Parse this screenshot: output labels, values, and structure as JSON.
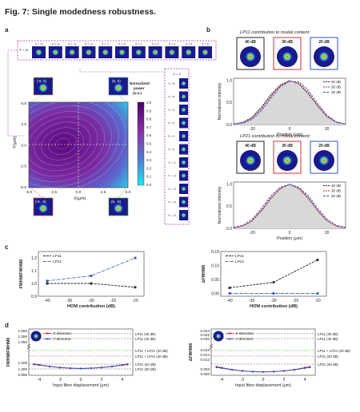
{
  "figure_title": "Fig. 7: Single modedness robustness.",
  "panels": {
    "a": "a",
    "b": "b",
    "c": "c",
    "d": "d"
  },
  "panel_a": {
    "colorbar_title": "Normalized power (a.u.)",
    "colorbar_ticks": [
      "1.0",
      "0.9",
      "0.8",
      "0.7",
      "0.6",
      "0.5",
      "0.4",
      "0.3",
      "0.2",
      "0.1",
      "0.0"
    ],
    "x_axis_label": "X(μm)",
    "y_axis_label": "Y(μm)",
    "x_ticks": [
      "-5.0",
      "-2.5",
      "0.0",
      "2.5",
      "5.0"
    ],
    "y_ticks": [
      "5.0",
      "2.5",
      "0.0",
      "-2.5",
      "-5.0"
    ],
    "corner_labels": {
      "top_left": "(-5, 5)",
      "top_right": "(5, 5)",
      "bottom_left": "(-5, -5)",
      "bottom_right": "(5, -5)"
    },
    "row_label_y": "Y = 5",
    "row_x_labels": [
      "X = -5",
      "X = -4",
      "X = -3",
      "X = -2",
      "X = -1",
      "X = 0",
      "X = 1",
      "X = 2",
      "X = 3",
      "X = 4",
      "X = 5"
    ],
    "col_label_x": "X = 0",
    "col_y_labels": [
      "Y = 5",
      "Y = 4",
      "Y = 3",
      "Y = 2",
      "Y = 1",
      "Y = 0",
      "Y = -1",
      "Y = -2",
      "Y = -3",
      "Y = -4",
      "Y = -5"
    ],
    "colors": {
      "corner_tl": "#c8b84a",
      "corner_tr": "#4aa0c8",
      "corner_bl": "#d04a4a",
      "corner_br": "#4aa84a",
      "frame": "#9b3aa0"
    }
  },
  "panel_b": {
    "top_title": "LP11 contribution to modal content:",
    "bottom_title": "LP21 contribution to modal content:",
    "thumb_labels": [
      "40 dB",
      "30 dB",
      "20 dB"
    ],
    "thumb_colors": [
      "#222222",
      "#d03030",
      "#3050c0"
    ],
    "y_axis_label": "Normalized intensity",
    "x_axis_label": "Position (μm)",
    "x_ticks": [
      "-20",
      "0",
      "20"
    ],
    "y_ticks": [
      "1.0",
      "0.5",
      "0.0"
    ],
    "legend": [
      "40 dB",
      "30 dB",
      "20 dB"
    ]
  },
  "chart_data": [
    {
      "type": "line",
      "panel": "b-top",
      "xlabel": "Position (μm)",
      "ylabel": "Normalized intensity",
      "xlim": [
        -30,
        30
      ],
      "ylim": [
        0,
        1.05
      ],
      "series": [
        {
          "name": "40 dB",
          "x": [
            -30,
            -25,
            -20,
            -15,
            -10,
            -5,
            0,
            5,
            10,
            15,
            20,
            25,
            30
          ],
          "values": [
            0.01,
            0.05,
            0.17,
            0.4,
            0.68,
            0.9,
            1.0,
            0.92,
            0.7,
            0.42,
            0.18,
            0.05,
            0.01
          ]
        },
        {
          "name": "30 dB",
          "x": [
            -30,
            -25,
            -20,
            -15,
            -10,
            -5,
            0,
            5,
            10,
            15,
            20,
            25,
            30
          ],
          "values": [
            0.01,
            0.04,
            0.15,
            0.37,
            0.65,
            0.88,
            0.99,
            0.94,
            0.73,
            0.44,
            0.19,
            0.06,
            0.01
          ]
        },
        {
          "name": "20 dB",
          "x": [
            -30,
            -25,
            -20,
            -15,
            -10,
            -5,
            0,
            5,
            10,
            15,
            20,
            25,
            30
          ],
          "values": [
            0.01,
            0.03,
            0.12,
            0.32,
            0.6,
            0.85,
            0.98,
            0.97,
            0.78,
            0.48,
            0.21,
            0.06,
            0.01
          ]
        }
      ]
    },
    {
      "type": "line",
      "panel": "b-bottom",
      "xlabel": "Position (μm)",
      "ylabel": "Normalized intensity",
      "xlim": [
        -30,
        30
      ],
      "ylim": [
        0,
        1.05
      ],
      "series": [
        {
          "name": "40 dB",
          "x": [
            -30,
            -25,
            -20,
            -15,
            -10,
            -5,
            0,
            5,
            10,
            15,
            20,
            25,
            30
          ],
          "values": [
            0.01,
            0.05,
            0.17,
            0.4,
            0.68,
            0.9,
            1.0,
            0.9,
            0.68,
            0.4,
            0.17,
            0.05,
            0.01
          ]
        },
        {
          "name": "30 dB",
          "x": [
            -30,
            -25,
            -20,
            -15,
            -10,
            -5,
            0,
            5,
            10,
            15,
            20,
            25,
            30
          ],
          "values": [
            0.01,
            0.05,
            0.18,
            0.42,
            0.7,
            0.91,
            1.0,
            0.91,
            0.7,
            0.42,
            0.18,
            0.05,
            0.01
          ]
        },
        {
          "name": "20 dB",
          "x": [
            -30,
            -25,
            -20,
            -15,
            -10,
            -5,
            0,
            5,
            10,
            15,
            20,
            25,
            30
          ],
          "values": [
            0.02,
            0.07,
            0.21,
            0.46,
            0.74,
            0.93,
            1.0,
            0.93,
            0.74,
            0.46,
            0.21,
            0.07,
            0.02
          ]
        }
      ]
    },
    {
      "type": "line",
      "panel": "c-left",
      "xlabel": "HOM contribution (dB)",
      "ylabel": "FWHM/FWHM0",
      "xlim": [
        -42,
        -18
      ],
      "ylim": [
        0.9,
        1.25
      ],
      "xticks": [
        "-40",
        "-35",
        "-30",
        "-25",
        "-20"
      ],
      "yticks": [
        "1.2",
        "1.1",
        "1.0",
        "0.9"
      ],
      "legend": [
        "LP11",
        "LP21"
      ],
      "series": [
        {
          "name": "LP11",
          "x": [
            -40,
            -30,
            -20
          ],
          "values": [
            1.0,
            1.0,
            0.97
          ]
        },
        {
          "name": "LP21",
          "x": [
            -40,
            -30,
            -20
          ],
          "values": [
            1.02,
            1.06,
            1.2
          ]
        }
      ]
    },
    {
      "type": "line",
      "panel": "c-right",
      "xlabel": "HOM contribution (dB)",
      "ylabel": "ΔFWHM0",
      "xlim": [
        -42,
        -18
      ],
      "ylim": [
        -0.01,
        0.15
      ],
      "xticks": [
        "-40",
        "-35",
        "-30",
        "-25",
        "-20"
      ],
      "yticks": [
        "0.15",
        "0.10",
        "0.05",
        "0.00"
      ],
      "legend": [
        "LP11",
        "LP21"
      ],
      "series": [
        {
          "name": "LP11",
          "x": [
            -40,
            -30,
            -20
          ],
          "values": [
            0.02,
            0.04,
            0.12
          ]
        },
        {
          "name": "LP21",
          "x": [
            -40,
            -30,
            -20
          ],
          "values": [
            0.0,
            0.0,
            0.0
          ]
        }
      ]
    },
    {
      "type": "line",
      "panel": "d-left",
      "xlabel": "Input fibre displacement (μm)",
      "ylabel": "FWHM/FWHM0",
      "xlim": [
        -5,
        5
      ],
      "ylim": [
        0.995,
        1.06
      ],
      "xticks": [
        "-4",
        "-2",
        "0",
        "2",
        "4"
      ],
      "yticks": [
        "1.060",
        "1.055",
        "1.050",
        "1.005",
        "1.000",
        "0.995"
      ],
      "legend": [
        "X-direction",
        "Y-direction"
      ],
      "reference_lines": [
        "LP11 (30 dB)",
        "LP11 (40 dB)",
        "LP11 + LP21 (20 dB)",
        "LP11 + LP21 (40 dB)",
        "LP21 (40 dB)",
        "LP21 (30 dB)"
      ],
      "series": [
        {
          "name": "X-direction",
          "x": [
            -4.5,
            -4,
            -3,
            -2,
            -1,
            0,
            1,
            2,
            3,
            4,
            4.5
          ],
          "values": [
            1.0045,
            1.0038,
            1.0022,
            1.0011,
            1.0004,
            1.0001,
            1.0004,
            1.0011,
            1.0022,
            1.0038,
            1.0045
          ]
        },
        {
          "name": "Y-direction",
          "x": [
            -4.5,
            -4,
            -3,
            -2,
            -1,
            0,
            1,
            2,
            3,
            4,
            4.5
          ],
          "values": [
            1.004,
            1.0034,
            1.002,
            1.001,
            1.0004,
            1.0001,
            1.0004,
            1.001,
            1.002,
            1.0034,
            1.004
          ]
        }
      ]
    },
    {
      "type": "line",
      "panel": "d-right",
      "xlabel": "Input fibre displacement (μm)",
      "ylabel": "ΔFWHM0",
      "xlim": [
        -5,
        5
      ],
      "ylim": [
        -0.001,
        0.044
      ],
      "xticks": [
        "-4",
        "-2",
        "0",
        "2",
        "4"
      ],
      "yticks": [
        "0.044",
        "0.042",
        "0.040",
        "0.016",
        "0.014",
        "0.012",
        "0.002",
        "0.000"
      ],
      "legend": [
        "X-direction",
        "Y-direction"
      ],
      "reference_lines": [
        "LP11 (30 dB)",
        "LP11 (40 dB)",
        "LP11 + LP21 (20 dB)",
        "LP21 (30 dB)",
        "LP21 (40 dB)"
      ],
      "series": [
        {
          "name": "X-direction",
          "x": [
            -4.5,
            -4,
            -3,
            -2,
            -1,
            0,
            1,
            2,
            3,
            4,
            4.5
          ],
          "values": [
            0.0034,
            0.0028,
            0.0016,
            0.0008,
            0.0003,
            0.0001,
            0.0003,
            0.0008,
            0.0016,
            0.0028,
            0.0034
          ]
        },
        {
          "name": "Y-direction",
          "x": [
            -4.5,
            -4,
            -3,
            -2,
            -1,
            0,
            1,
            2,
            3,
            4,
            4.5
          ],
          "values": [
            0.003,
            0.0025,
            0.0014,
            0.0007,
            0.0003,
            0.0001,
            0.0003,
            0.0007,
            0.0014,
            0.0025,
            0.003
          ]
        }
      ]
    }
  ],
  "panel_c": {
    "left_xlabel": "HOM contribution (dB)",
    "left_ylabel": "FWHM/FWHM0",
    "right_xlabel": "HOM contribution (dB)",
    "right_ylabel": "ΔFWHM0",
    "legend": [
      "LP11",
      "LP21"
    ]
  },
  "panel_d": {
    "xlabel": "Input fibre displacement (μm)",
    "left_ylabel": "FWHM/FWHM0",
    "right_ylabel": "ΔFWHM0",
    "legend": [
      "X-direction",
      "Y-direction"
    ],
    "left_ref_labels": [
      "LP11 (30 dB)",
      "LP11 (40 dB)",
      "LP11 + LP21 (20 dB)",
      "LP11 + LP21 (40 dB)",
      "LP21 (40 dB)",
      "LP21 (30 dB)"
    ],
    "right_ref_labels": [
      "LP11 (30 dB)",
      "LP11 (40 dB)",
      "LP11 + LP21 (20 dB)",
      "LP21 (30 dB)",
      "LP21 (40 dB)"
    ],
    "series_colors": {
      "x": "#d03030",
      "y": "#3050c0"
    }
  }
}
